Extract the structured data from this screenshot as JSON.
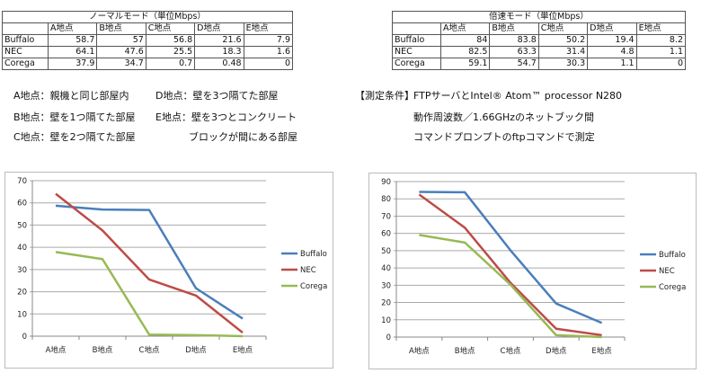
{
  "tables": [
    {
      "title": "ノーマルモード（単位Mbps）",
      "columns": [
        "A地点",
        "B地点",
        "C地点",
        "D地点",
        "E地点"
      ],
      "rows": [
        {
          "label": "Buffalo",
          "values": [
            "58.7",
            "57",
            "56.8",
            "21.6",
            "7.9"
          ]
        },
        {
          "label": "NEC",
          "values": [
            "64.1",
            "47.6",
            "25.5",
            "18.3",
            "1.6"
          ]
        },
        {
          "label": "Corega",
          "values": [
            "37.9",
            "34.7",
            "0.7",
            "0.48",
            "0"
          ]
        }
      ]
    },
    {
      "title": "倍速モード（単位Mbps）",
      "columns": [
        "A地点",
        "B地点",
        "C地点",
        "D地点",
        "E地点"
      ],
      "rows": [
        {
          "label": "Buffalo",
          "values": [
            "84",
            "83.8",
            "50.2",
            "19.4",
            "8.2"
          ]
        },
        {
          "label": "NEC",
          "values": [
            "82.5",
            "63.3",
            "31.4",
            "4.8",
            "1.1"
          ]
        },
        {
          "label": "Corega",
          "values": [
            "59.1",
            "54.7",
            "30.3",
            "1.1",
            "0"
          ]
        }
      ]
    }
  ],
  "notes": {
    "a": "A地点：親機と同じ部屋内",
    "b": "B地点：壁を1つ隔てた部屋",
    "c": "C地点：壁を2つ隔てた部屋",
    "d": "D地点：壁を3つ隔てた部屋",
    "e1": "E地点：壁を3つとコンクリート",
    "e2": "ブロックが間にある部屋",
    "cond_label": "【測定条件】",
    "cond1": "FTPサーバとIntel® Atom™ processor N280",
    "cond2": "動作周波数／1.66GHzのネットブック間",
    "cond3": "コマンドプロンプトのftpコマンドで測定"
  },
  "chart_data": [
    {
      "type": "line",
      "categories": [
        "A地点",
        "B地点",
        "C地点",
        "D地点",
        "E地点"
      ],
      "ylim": [
        0,
        70
      ],
      "yticks": [
        0,
        10,
        20,
        30,
        40,
        50,
        60,
        70
      ],
      "grid": true,
      "legend": "right",
      "series": [
        {
          "name": "Buffalo",
          "color": "#4a7ebb",
          "values": [
            58.7,
            57,
            56.8,
            21.6,
            7.9
          ]
        },
        {
          "name": "NEC",
          "color": "#be4b48",
          "values": [
            64.1,
            47.6,
            25.5,
            18.3,
            1.6
          ]
        },
        {
          "name": "Corega",
          "color": "#98b954",
          "values": [
            37.9,
            34.7,
            0.7,
            0.48,
            0
          ]
        }
      ]
    },
    {
      "type": "line",
      "categories": [
        "A地点",
        "B地点",
        "C地点",
        "D地点",
        "E地点"
      ],
      "ylim": [
        0,
        90
      ],
      "yticks": [
        0,
        10,
        20,
        30,
        40,
        50,
        60,
        70,
        80,
        90
      ],
      "grid": true,
      "legend": "right",
      "series": [
        {
          "name": "Buffalo",
          "color": "#4a7ebb",
          "values": [
            84,
            83.8,
            50.2,
            19.4,
            8.2
          ]
        },
        {
          "name": "NEC",
          "color": "#be4b48",
          "values": [
            82.5,
            63.3,
            31.4,
            4.8,
            1.1
          ]
        },
        {
          "name": "Corega",
          "color": "#98b954",
          "values": [
            59.1,
            54.7,
            30.3,
            1.1,
            0
          ]
        }
      ]
    }
  ]
}
